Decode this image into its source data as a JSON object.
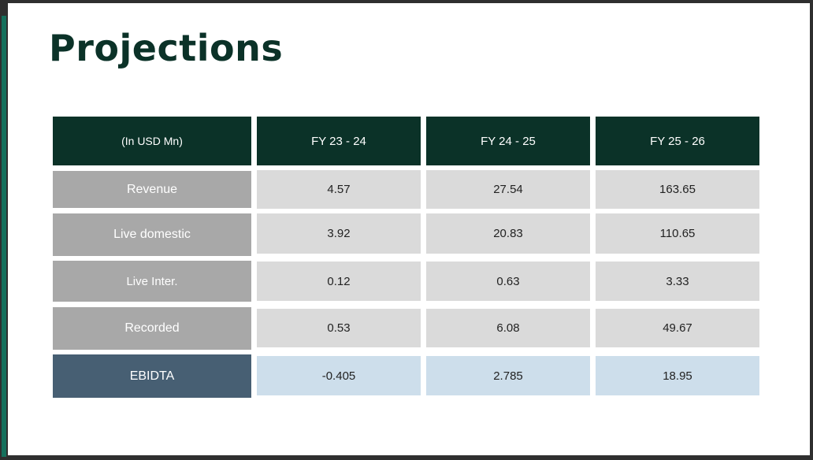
{
  "slide": {
    "title": "Projections"
  },
  "table": {
    "header": [
      "(In USD Mn)",
      "FY 23 - 24",
      "FY 24 - 25",
      "FY 25 - 26"
    ],
    "rows": [
      {
        "label": "Revenue",
        "values": [
          "4.57",
          "27.54",
          "163.65"
        ]
      },
      {
        "label": "Live domestic",
        "values": [
          "3.92",
          "20.83",
          "110.65"
        ]
      },
      {
        "label": "Live Inter.",
        "values": [
          "0.12",
          "0.63",
          "3.33"
        ]
      },
      {
        "label": "Recorded",
        "values": [
          "0.53",
          "6.08",
          "49.67"
        ]
      },
      {
        "label": "EBIDTA",
        "values": [
          "-0.405",
          "2.785",
          "18.95"
        ]
      }
    ]
  },
  "colors": {
    "title": "#0b3228",
    "header_bg": "#0b3228",
    "row_label_bg": "#a8a8a8",
    "value_bg": "#dadada",
    "ebitda_label_bg": "#475f73",
    "ebitda_value_bg": "#cddeeb",
    "accent": "#15705c"
  }
}
